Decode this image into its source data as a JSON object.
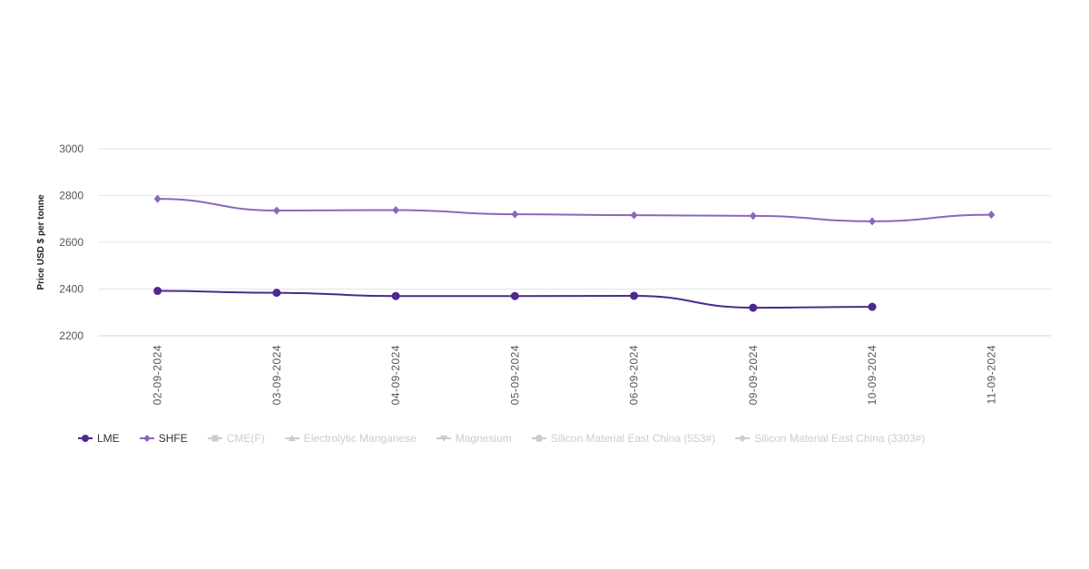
{
  "chart_data": {
    "type": "line",
    "ylabel": "Price USD $ per tonne",
    "ylim": [
      2200,
      3000
    ],
    "yticks": [
      2200,
      2400,
      2600,
      2800,
      3000
    ],
    "grid": true,
    "categories": [
      "02-09-2024",
      "03-09-2024",
      "04-09-2024",
      "05-09-2024",
      "06-09-2024",
      "09-09-2024",
      "10-09-2024",
      "11-09-2024"
    ],
    "series": [
      {
        "name": "LME",
        "color": "#4b2a8c",
        "marker": "circle",
        "values": [
          2392,
          2384,
          2370,
          2370,
          2371,
          2320,
          2324,
          null
        ]
      },
      {
        "name": "SHFE",
        "color": "#8a67b9",
        "marker": "diamond",
        "values": [
          2786,
          2736,
          2738,
          2720,
          2716,
          2713,
          2690,
          2718
        ]
      }
    ],
    "legend_position": "bottom-left",
    "legend": [
      {
        "name": "LME",
        "active": true,
        "color": "#4b2a8c"
      },
      {
        "name": "SHFE",
        "active": true,
        "color": "#8a67b9"
      },
      {
        "name": "CME(F)",
        "active": false,
        "color": "#cccccc"
      },
      {
        "name": "Electrolytic Manganese",
        "active": false,
        "color": "#cccccc"
      },
      {
        "name": "Magnesium",
        "active": false,
        "color": "#cccccc"
      },
      {
        "name": "Silicon Material East China (553#)",
        "active": false,
        "color": "#cccccc"
      },
      {
        "name": "Silicon Material East China (3303#)",
        "active": false,
        "color": "#cccccc"
      }
    ]
  }
}
